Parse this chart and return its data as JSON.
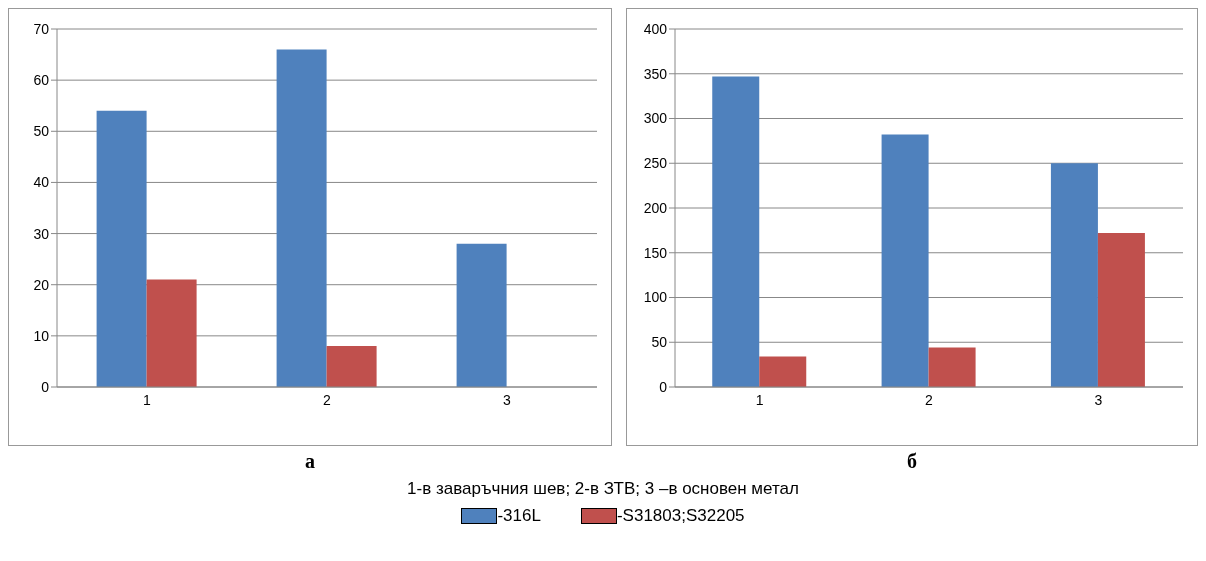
{
  "chart_data": [
    {
      "type": "bar",
      "title": "а",
      "categories": [
        "1",
        "2",
        "3"
      ],
      "series": [
        {
          "color": "#4f81bd",
          "values": [
            54,
            66,
            28
          ]
        },
        {
          "color": "#c0504d",
          "values": [
            21,
            8,
            null
          ]
        }
      ],
      "ylim": [
        0,
        70
      ],
      "yticks": [
        0,
        10,
        20,
        30,
        40,
        50,
        60,
        70
      ],
      "grid": "y"
    },
    {
      "type": "bar",
      "title": "б",
      "categories": [
        "1",
        "2",
        "3"
      ],
      "series": [
        {
          "name": "-316L",
          "color": "#4f81bd",
          "values": [
            347,
            282,
            250
          ]
        },
        {
          "name": "-S31803;S32205",
          "color": "#c0504d",
          "values": [
            34,
            44,
            172
          ]
        }
      ],
      "ylim": [
        0,
        400
      ],
      "yticks": [
        0,
        50,
        100,
        150,
        200,
        250,
        300,
        350,
        400
      ],
      "grid": "y",
      "legend": "bottom",
      "annotations": [
        "1-в заваръчния шев; 2-в ЗТВ; 3 –в основен метал"
      ]
    }
  ]
}
